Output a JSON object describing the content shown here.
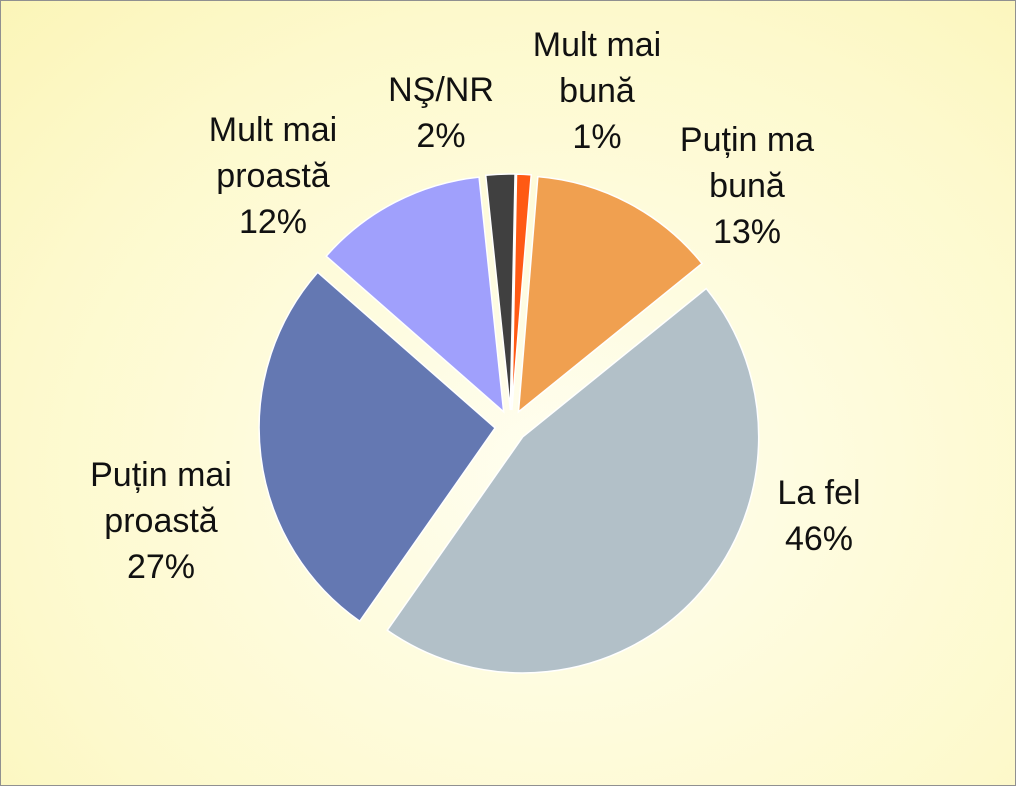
{
  "chart_data": {
    "type": "pie",
    "categories": [
      "Mult mai bună",
      "Puțin ma bună",
      "La fel",
      "Puțin mai proastă",
      "Mult mai proastă",
      "NŞ/NR"
    ],
    "values": [
      1,
      13,
      46,
      27,
      12,
      2
    ],
    "value_labels": [
      "1%",
      "13%",
      "46%",
      "27%",
      "12%",
      "2%"
    ],
    "colors": [
      "#ff5a14",
      "#f0a050",
      "#b2c0c8",
      "#6478b2",
      "#a0a0fc",
      "#404040"
    ]
  }
}
